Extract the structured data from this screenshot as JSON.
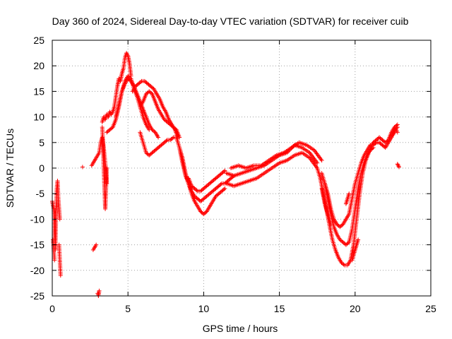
{
  "chart_data": {
    "type": "scatter",
    "title": "Day 360 of 2024, Sidereal Day-to-day VTEC variation (SDTVAR) for receiver cuib",
    "xlabel": "GPS time / hours",
    "ylabel": "SDTVAR / TECUs",
    "xlim": [
      0,
      25
    ],
    "ylim": [
      -25,
      25
    ],
    "x_ticks": [
      0,
      5,
      10,
      15,
      20,
      25
    ],
    "y_ticks": [
      -25,
      -20,
      -15,
      -10,
      -5,
      0,
      5,
      10,
      15,
      20,
      25
    ],
    "x_tick_labels": [
      "0",
      "5",
      "10",
      "15",
      "20",
      "25"
    ],
    "y_tick_labels": [
      "-25",
      "-20",
      "-15",
      "-10",
      "-5",
      "0",
      "5",
      "10",
      "15",
      "20",
      "25"
    ],
    "grid": true,
    "marker": "+",
    "color": "#ff0000",
    "segments": [
      {
        "x": [
          0.0,
          0.1,
          0.15,
          0.2,
          0.25,
          0.3,
          0.35,
          0.4,
          0.45,
          0.5
        ],
        "y": [
          -6.5,
          -8,
          -12,
          -16,
          -9,
          -4,
          -2.5,
          -6,
          -8,
          -10
        ]
      },
      {
        "x": [
          0.05,
          0.1,
          0.15
        ],
        "y": [
          -14,
          -16,
          -18
        ]
      },
      {
        "x": [
          0.45,
          0.5,
          0.55
        ],
        "y": [
          -15,
          -18,
          -21
        ]
      },
      {
        "x": [
          2.0
        ],
        "y": [
          0.2
        ]
      },
      {
        "x": [
          2.7,
          2.8,
          2.9
        ],
        "y": [
          -16,
          -15.5,
          -15
        ]
      },
      {
        "x": [
          3.0,
          3.05,
          3.1
        ],
        "y": [
          -24.5,
          -25,
          -24
        ]
      },
      {
        "x": [
          2.6,
          2.7,
          2.8,
          2.9,
          3.0,
          3.1,
          3.2,
          3.3,
          3.4,
          3.5,
          3.6
        ],
        "y": [
          0.5,
          1,
          1.5,
          2,
          2.5,
          3,
          5,
          6,
          4,
          1,
          -3
        ]
      },
      {
        "x": [
          3.3,
          3.35,
          3.4,
          3.45,
          3.5,
          3.55,
          3.6
        ],
        "y": [
          8,
          5,
          0,
          -4,
          -8,
          -4,
          0
        ]
      },
      {
        "x": [
          3.3,
          3.4,
          3.5,
          3.6,
          3.7,
          3.8,
          3.9,
          4.0,
          4.1,
          4.2,
          4.3,
          4.4,
          4.5,
          4.6,
          4.7,
          4.8,
          4.9,
          5.0,
          5.1,
          5.2
        ],
        "y": [
          9,
          10,
          9.5,
          10.5,
          10,
          11,
          10.5,
          11,
          12,
          14,
          16,
          17.5,
          17,
          18.5,
          19.5,
          21.5,
          22.5,
          22,
          20.5,
          18
        ]
      },
      {
        "x": [
          3.6,
          3.8,
          4.0,
          4.2,
          4.4,
          4.6,
          4.8,
          5.0,
          5.2,
          5.4,
          5.6,
          5.8,
          6.0,
          6.2,
          6.4
        ],
        "y": [
          7,
          7.5,
          8,
          9.5,
          12,
          15,
          17,
          18,
          17.5,
          15.5,
          14,
          12,
          10,
          8.5,
          7.5
        ]
      },
      {
        "x": [
          4.2,
          4.4,
          4.6,
          4.8,
          5.0,
          5.2,
          5.4,
          5.6,
          5.8,
          6.0,
          6.2,
          6.4,
          6.6,
          6.8,
          7.0
        ],
        "y": [
          10,
          12.5,
          15,
          16.5,
          17.5,
          17,
          16,
          14.5,
          13,
          11.5,
          10,
          8.5,
          7.5,
          7,
          6
        ]
      },
      {
        "x": [
          5.3,
          5.5,
          5.7,
          5.9,
          6.1,
          6.3,
          6.5,
          6.7,
          6.9,
          7.1,
          7.3,
          7.5,
          7.7,
          7.9,
          8.1,
          8.3
        ],
        "y": [
          15,
          16,
          16.5,
          17,
          17,
          16.5,
          16,
          15.5,
          14.5,
          13.5,
          12,
          11,
          9.5,
          8.5,
          7.5,
          6
        ]
      },
      {
        "x": [
          5.8,
          6.0,
          6.2,
          6.4,
          6.6,
          6.8,
          7.0,
          7.2,
          7.4,
          7.6,
          7.8,
          8.0,
          8.2,
          8.4
        ],
        "y": [
          12,
          13,
          14.5,
          15,
          14.5,
          13,
          11.5,
          10.5,
          9.5,
          9,
          8.5,
          8,
          7.5,
          6
        ]
      },
      {
        "x": [
          5.8,
          6.0,
          6.2,
          6.4,
          6.6,
          6.8,
          7.0,
          7.2,
          7.4,
          7.6,
          7.8,
          8.0,
          8.2
        ],
        "y": [
          7,
          5,
          3,
          2.5,
          3,
          3.5,
          4,
          4.5,
          5,
          5.5,
          5.5,
          6,
          6
        ]
      },
      {
        "x": [
          8.2,
          8.4,
          8.6,
          8.8,
          9.0,
          9.2,
          9.4,
          9.6,
          9.8,
          10.0,
          10.2,
          10.4,
          10.6,
          10.8,
          11.0,
          11.2,
          11.4
        ],
        "y": [
          6,
          4,
          2,
          -1,
          -3,
          -5,
          -6.5,
          -7.5,
          -8.5,
          -9,
          -8.5,
          -7.5,
          -6.5,
          -5.5,
          -5,
          -4.5,
          -4
        ]
      },
      {
        "x": [
          8.4,
          8.6,
          8.8,
          9.0,
          9.2,
          9.4,
          9.6,
          9.8,
          10.0,
          10.2,
          10.4,
          10.6,
          10.8,
          11.0,
          11.2,
          11.4,
          11.6,
          11.8,
          12.0
        ],
        "y": [
          4,
          1,
          -1.5,
          -3,
          -4.5,
          -5.5,
          -6,
          -6.5,
          -6,
          -5.5,
          -5,
          -4.5,
          -4,
          -3.5,
          -3,
          -3,
          -2.5,
          -2,
          -1.5
        ]
      },
      {
        "x": [
          9.0,
          9.2,
          9.4,
          9.6,
          9.8,
          10.0,
          10.2,
          10.4,
          10.6,
          10.8,
          11.0,
          11.2,
          11.4
        ],
        "y": [
          -2,
          -3.5,
          -4,
          -4.5,
          -4.5,
          -4,
          -3.5,
          -3,
          -2.5,
          -2,
          -1.5,
          -1,
          -0.5
        ]
      },
      {
        "x": [
          11.5,
          12.0,
          12.5,
          13.0,
          13.5,
          14.0,
          14.5,
          15.0,
          15.5,
          16.0,
          16.5,
          17.0,
          17.5
        ],
        "y": [
          -3,
          -3.5,
          -3,
          -2.5,
          -2,
          -1,
          0,
          1,
          1.5,
          2.5,
          3,
          2,
          0
        ]
      },
      {
        "x": [
          11.5,
          12.0,
          12.5,
          13.0,
          13.5,
          14.0,
          14.5,
          15.0,
          15.5,
          16.0,
          16.5,
          17.0,
          17.5
        ],
        "y": [
          -1,
          -1.5,
          -1,
          -0.5,
          0,
          0.5,
          1.5,
          2.5,
          3,
          4.5,
          4,
          3,
          1
        ]
      },
      {
        "x": [
          11.8,
          12.3,
          12.8,
          13.3,
          13.8,
          14.3,
          14.8,
          15.3,
          15.8,
          16.3,
          16.8,
          17.3,
          17.8
        ],
        "y": [
          0,
          0.5,
          0,
          0.5,
          0.5,
          1.5,
          2.5,
          3,
          4,
          5,
          4.5,
          3.5,
          1.5
        ]
      },
      {
        "x": [
          17.5,
          17.7,
          17.9,
          18.1,
          18.3,
          18.5,
          18.7,
          18.9,
          19.1,
          19.3,
          19.5,
          19.7,
          19.9,
          20.1,
          20.3,
          20.5,
          20.7,
          20.9,
          21.1
        ],
        "y": [
          0,
          -2,
          -5,
          -8,
          -11,
          -14,
          -16,
          -17.5,
          -18.5,
          -19,
          -19,
          -18,
          -15,
          -10,
          -5,
          -1,
          1.5,
          3,
          4
        ]
      },
      {
        "x": [
          17.8,
          18.0,
          18.2,
          18.4,
          18.6,
          18.8,
          19.0,
          19.2,
          19.4,
          19.6,
          19.8,
          20.0,
          20.2,
          20.4,
          20.6,
          20.8,
          21.0,
          21.2
        ],
        "y": [
          -1,
          -3,
          -6,
          -9,
          -11.5,
          -13,
          -14,
          -14.5,
          -15,
          -14.5,
          -12,
          -8,
          -4,
          -1,
          1,
          2.5,
          3.5,
          4
        ]
      },
      {
        "x": [
          18.0,
          18.2,
          18.4,
          18.6,
          18.8,
          19.0,
          19.2,
          19.4,
          19.6,
          19.8,
          20.0,
          20.2,
          20.4,
          20.6,
          20.8,
          21.0
        ],
        "y": [
          -3,
          -5,
          -8,
          -10,
          -11,
          -11.5,
          -11,
          -10,
          -9,
          -6,
          -3,
          -1,
          1,
          2.5,
          3.5,
          4.5
        ]
      },
      {
        "x": [
          17.8,
          18.0,
          18.2,
          18.4
        ],
        "y": [
          -4,
          -7,
          -9,
          -11
        ]
      },
      {
        "x": [
          19.4,
          19.5,
          19.6
        ],
        "y": [
          -7,
          -6,
          -5
        ]
      },
      {
        "x": [
          19.8,
          19.9,
          20.0,
          20.1,
          20.2
        ],
        "y": [
          -18,
          -17,
          -16,
          -15,
          -14
        ]
      },
      {
        "x": [
          21.0,
          21.2,
          21.4,
          21.6,
          21.8,
          22.0,
          22.2,
          22.4,
          22.6,
          22.8
        ],
        "y": [
          4,
          5,
          5.5,
          6,
          5.5,
          5,
          5.5,
          7,
          8,
          8.5
        ]
      },
      {
        "x": [
          21.2,
          21.4,
          21.6,
          21.8,
          22.0,
          22.2,
          22.4,
          22.6,
          22.8
        ],
        "y": [
          4.5,
          5,
          5,
          4.5,
          4,
          5,
          6,
          7.5,
          8
        ]
      },
      {
        "x": [
          22.5,
          22.6,
          22.7,
          22.8
        ],
        "y": [
          6.5,
          7,
          7.5,
          7
        ]
      },
      {
        "x": [
          22.8,
          22.9
        ],
        "y": [
          0.8,
          0.2
        ]
      }
    ]
  }
}
